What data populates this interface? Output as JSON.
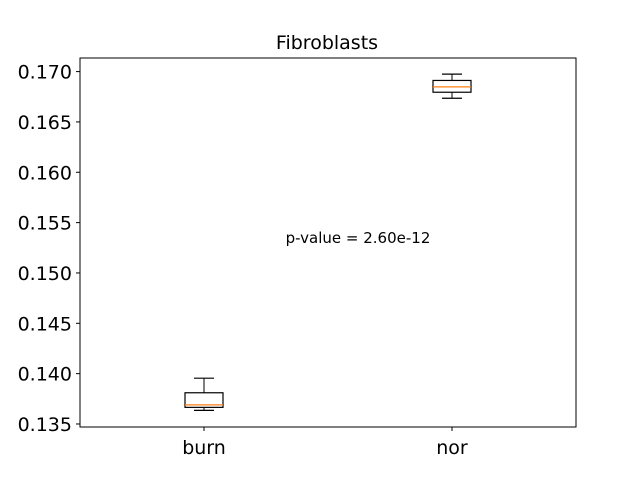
{
  "chart_data": {
    "type": "boxplot",
    "title": "Fibroblasts",
    "xlabel": "",
    "ylabel": "",
    "categories": [
      "burn",
      "nor"
    ],
    "boxes": [
      {
        "category": "burn",
        "whisker_low": 0.13635,
        "q1": 0.13665,
        "median": 0.1369,
        "q3": 0.1381,
        "whisker_high": 0.13955
      },
      {
        "category": "nor",
        "whisker_low": 0.16735,
        "q1": 0.16795,
        "median": 0.16848,
        "q3": 0.16912,
        "whisker_high": 0.16975
      }
    ],
    "ylim": [
      0.1347,
      0.17135
    ],
    "yticks": [
      0.135,
      0.14,
      0.145,
      0.15,
      0.155,
      0.16,
      0.165,
      0.17
    ],
    "ytick_labels": [
      "0.135",
      "0.140",
      "0.145",
      "0.150",
      "0.155",
      "0.160",
      "0.165",
      "0.170"
    ],
    "annotation": "p-value = 2.60e-12",
    "grid": false,
    "colors": {
      "box": "#000000",
      "median": "#ff7f0e",
      "frame": "#000000"
    }
  }
}
